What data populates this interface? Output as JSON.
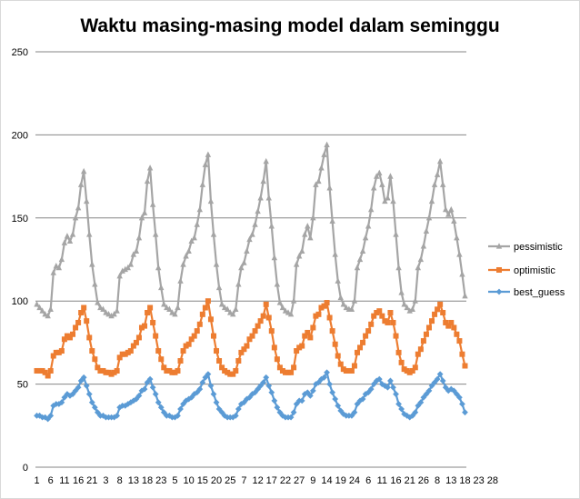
{
  "chart_data": {
    "type": "line",
    "title": "Waktu masing-masing model dalam seminggu",
    "xlabel": "",
    "ylabel": "",
    "ylim": [
      0,
      250
    ],
    "yticks": [
      0,
      50,
      100,
      150,
      200,
      250
    ],
    "grid": true,
    "legend_position": "right",
    "x_tick_labels": "1,,,,,6,,,,,11,,,,,16,,,,,21,,,,,3,,,,,8,,,,,13,,,,,18,,,,,23,,,,,5,,,,,10,,,,,15,,,,,20,,,,,25,,,,,7,,,,,12,,,,,17,,,,,22,,,,,27,,,,,9,,,,,14,,,,,19,,,,,24,,,,,6,,,,,11,,,,,16,,,,,21,,,,,26,,,,,8,,,,,13,,,,,18,,,,,23,,,,,28,,,,",
    "series": [
      {
        "name": "pessimistic",
        "color": "#a5a5a5",
        "marker": "triangle",
        "values": [
          98,
          96,
          94,
          92,
          91,
          95,
          117,
          121,
          120,
          125,
          135,
          139,
          136,
          140,
          150,
          156,
          170,
          178,
          160,
          140,
          122,
          110,
          99,
          96,
          95,
          93,
          92,
          91,
          92,
          94,
          115,
          118,
          119,
          120,
          122,
          128,
          130,
          138,
          150,
          153,
          172,
          180,
          158,
          140,
          120,
          108,
          98,
          96,
          95,
          93,
          92,
          96,
          112,
          122,
          127,
          130,
          136,
          138,
          146,
          155,
          170,
          182,
          188,
          160,
          140,
          122,
          108,
          98,
          96,
          95,
          93,
          92,
          95,
          110,
          120,
          123,
          130,
          137,
          140,
          146,
          154,
          162,
          172,
          184,
          162,
          145,
          126,
          110,
          99,
          96,
          94,
          93,
          92,
          100,
          122,
          127,
          130,
          140,
          145,
          138,
          150,
          170,
          172,
          180,
          188,
          194,
          168,
          148,
          128,
          112,
          102,
          98,
          96,
          95,
          95,
          100,
          120,
          125,
          130,
          138,
          145,
          155,
          168,
          175,
          177,
          170,
          160,
          162,
          175,
          160,
          140,
          120,
          105,
          98,
          96,
          94,
          95,
          100,
          120,
          125,
          133,
          142,
          150,
          160,
          170,
          176,
          184,
          170,
          155,
          152,
          155,
          148,
          138,
          128,
          116,
          103
        ]
      },
      {
        "name": "optimistic",
        "color": "#ed7d31",
        "marker": "square",
        "values": [
          58,
          58,
          58,
          57,
          55,
          58,
          67,
          69,
          69,
          70,
          77,
          79,
          78,
          80,
          84,
          87,
          93,
          96,
          88,
          78,
          70,
          65,
          60,
          58,
          58,
          57,
          57,
          56,
          57,
          58,
          66,
          68,
          68,
          69,
          70,
          73,
          75,
          78,
          84,
          85,
          93,
          96,
          87,
          79,
          70,
          65,
          60,
          58,
          58,
          57,
          57,
          58,
          64,
          70,
          73,
          74,
          77,
          79,
          82,
          86,
          92,
          96,
          100,
          89,
          79,
          70,
          64,
          60,
          58,
          57,
          56,
          56,
          58,
          64,
          69,
          71,
          73,
          77,
          79,
          82,
          85,
          88,
          91,
          98,
          90,
          82,
          72,
          65,
          60,
          58,
          57,
          57,
          57,
          60,
          70,
          72,
          73,
          79,
          81,
          78,
          84,
          91,
          92,
          96,
          97,
          99,
          90,
          82,
          74,
          67,
          62,
          59,
          58,
          58,
          58,
          61,
          69,
          72,
          75,
          79,
          82,
          86,
          91,
          93,
          94,
          91,
          88,
          87,
          93,
          87,
          79,
          69,
          63,
          59,
          58,
          57,
          58,
          60,
          68,
          71,
          76,
          80,
          84,
          88,
          92,
          95,
          98,
          93,
          87,
          85,
          87,
          84,
          80,
          76,
          68,
          61
        ]
      },
      {
        "name": "best_guess",
        "color": "#5b9bd5",
        "marker": "diamond",
        "values": [
          31,
          31,
          30,
          30,
          29,
          31,
          37,
          38,
          38,
          39,
          42,
          44,
          43,
          44,
          46,
          48,
          52,
          54,
          49,
          44,
          39,
          36,
          33,
          31,
          31,
          30,
          30,
          30,
          30,
          31,
          36,
          37,
          37,
          38,
          39,
          40,
          41,
          43,
          46,
          47,
          51,
          53,
          48,
          44,
          39,
          36,
          33,
          31,
          31,
          30,
          30,
          31,
          35,
          38,
          40,
          41,
          42,
          44,
          45,
          47,
          51,
          54,
          56,
          49,
          44,
          39,
          35,
          33,
          31,
          30,
          30,
          30,
          31,
          35,
          38,
          39,
          41,
          42,
          44,
          45,
          47,
          49,
          51,
          54,
          49,
          45,
          40,
          36,
          33,
          31,
          30,
          30,
          30,
          33,
          38,
          40,
          40,
          44,
          45,
          43,
          46,
          50,
          51,
          53,
          54,
          57,
          50,
          45,
          41,
          37,
          34,
          32,
          31,
          31,
          31,
          33,
          38,
          40,
          41,
          44,
          45,
          47,
          50,
          52,
          53,
          50,
          49,
          48,
          52,
          48,
          44,
          38,
          35,
          32,
          31,
          30,
          31,
          33,
          37,
          39,
          42,
          44,
          46,
          49,
          51,
          53,
          56,
          52,
          48,
          46,
          47,
          46,
          44,
          42,
          38,
          33
        ]
      }
    ]
  }
}
